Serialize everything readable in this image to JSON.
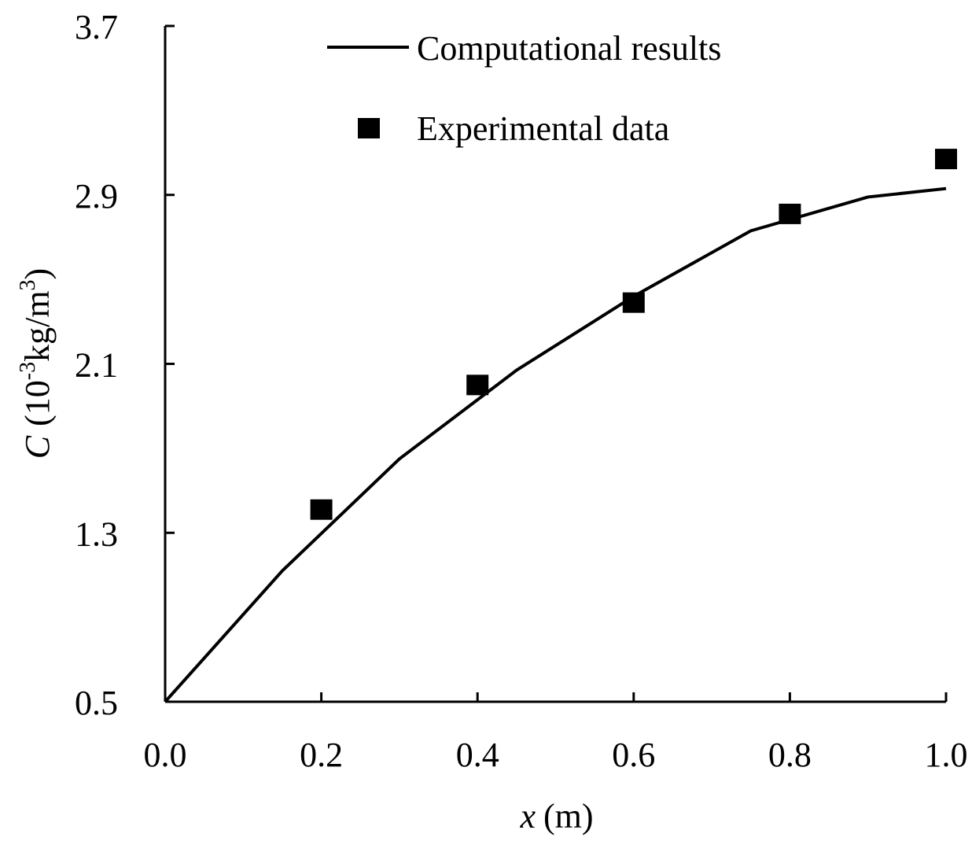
{
  "chart_data": {
    "type": "line",
    "xlabel_var": "x",
    "xlabel_unit": "(m)",
    "ylabel_var": "C",
    "ylabel_unit_pre": "(10",
    "ylabel_unit_exp": "-3",
    "ylabel_unit_mid": "kg/m",
    "ylabel_unit_exp2": "3",
    "ylabel_unit_post": ")",
    "xlim": [
      0.0,
      1.0
    ],
    "ylim": [
      0.5,
      3.7
    ],
    "x_ticks": [
      0.0,
      0.2,
      0.4,
      0.6,
      0.8,
      1.0
    ],
    "x_tick_labels": [
      "0.0",
      "0.2",
      "0.4",
      "0.6",
      "0.8",
      "1.0"
    ],
    "y_ticks": [
      0.5,
      1.3,
      2.1,
      2.9,
      3.7
    ],
    "y_tick_labels": [
      "0.5",
      "1.3",
      "2.1",
      "2.9",
      "3.7"
    ],
    "grid": false,
    "legend_position": "top",
    "series": [
      {
        "name": "Computational results",
        "kind": "line",
        "color": "#000000",
        "x": [
          0.0,
          0.15,
          0.3,
          0.45,
          0.6,
          0.75,
          0.9,
          1.0
        ],
        "y": [
          0.5,
          1.12,
          1.65,
          2.07,
          2.42,
          2.73,
          2.89,
          2.93
        ]
      },
      {
        "name": "Experimental data",
        "kind": "scatter",
        "color": "#000000",
        "marker": "square",
        "x": [
          0.2,
          0.4,
          0.6,
          0.8,
          1.0
        ],
        "y": [
          1.41,
          2.0,
          2.39,
          2.81,
          3.07
        ]
      }
    ]
  }
}
